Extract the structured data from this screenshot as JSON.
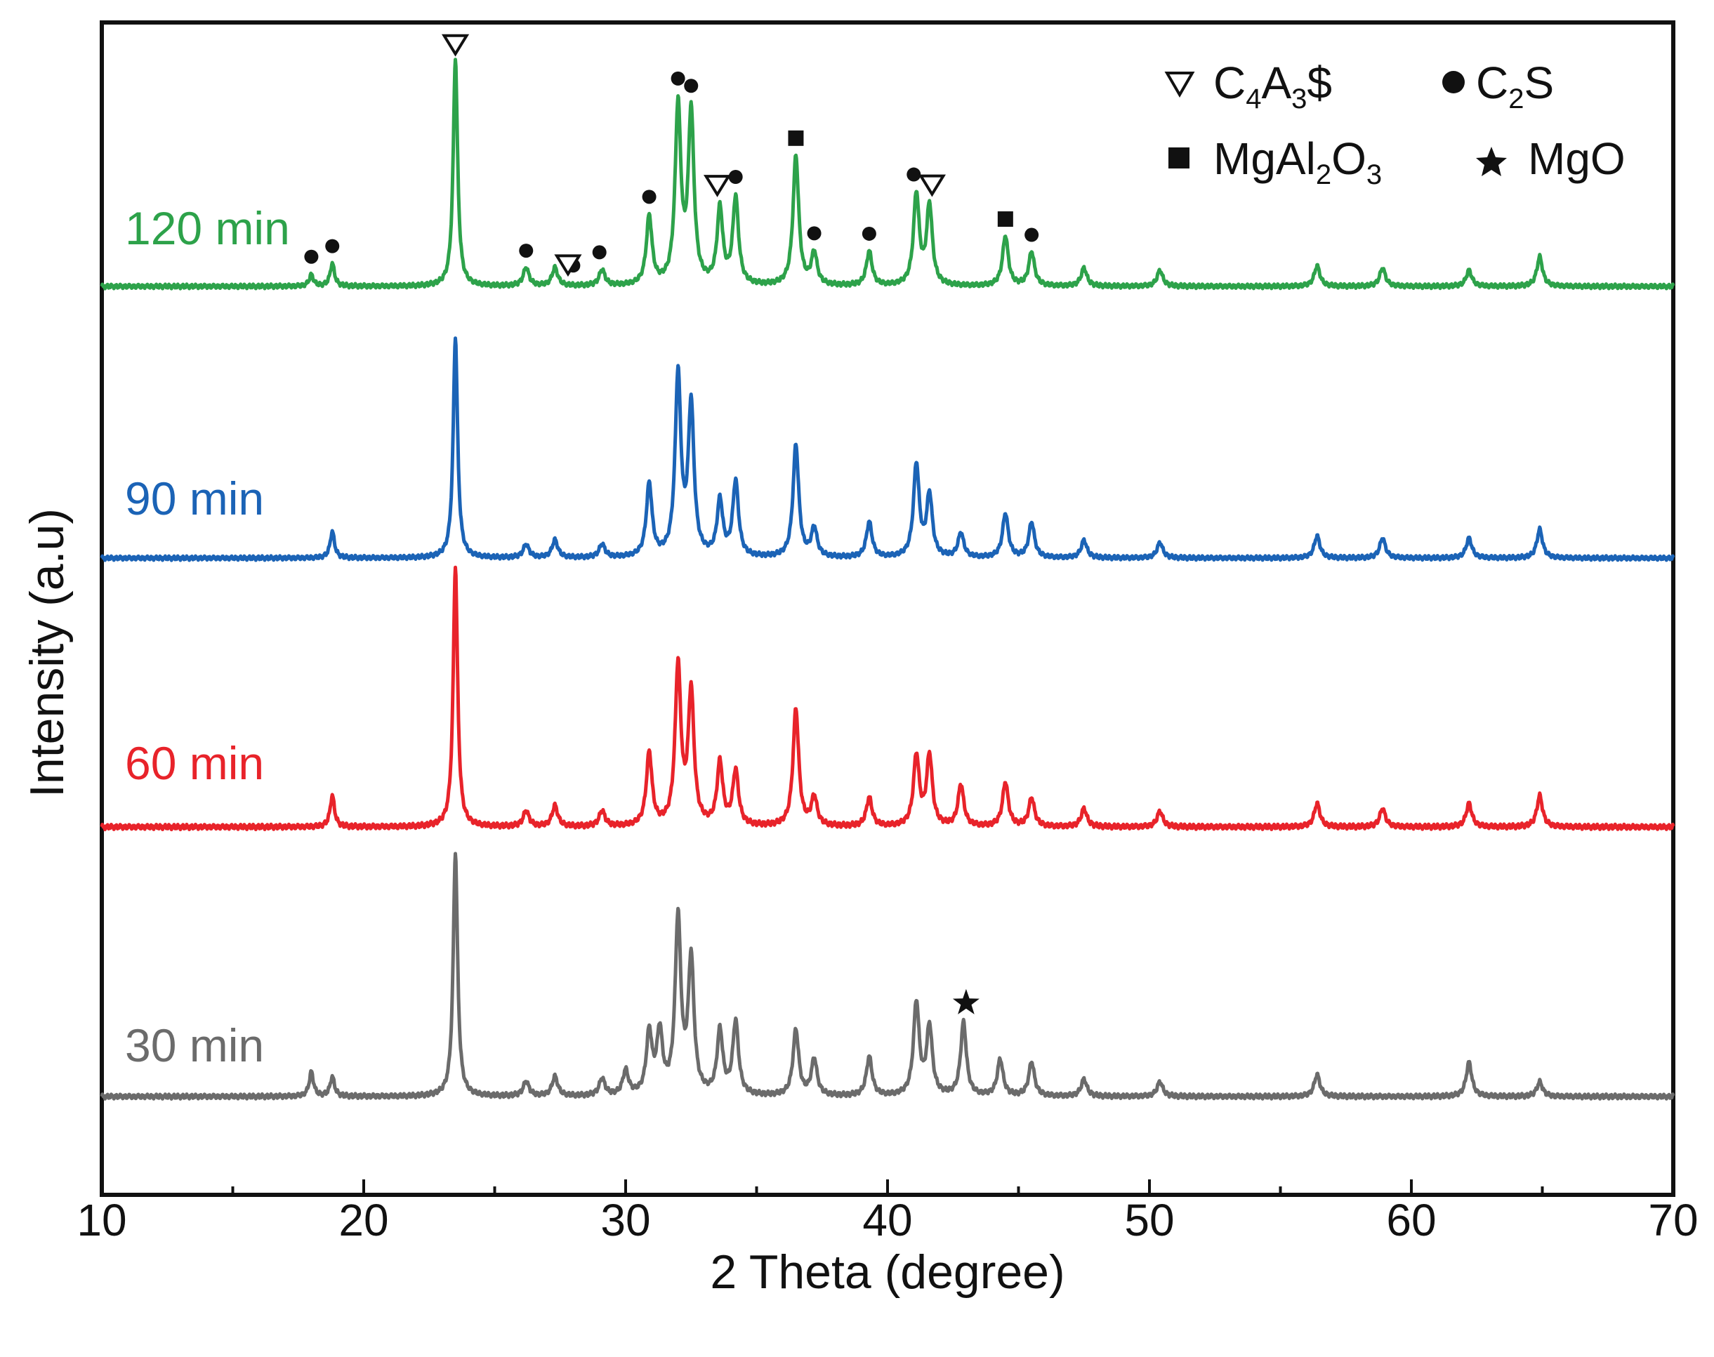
{
  "chart_data": {
    "type": "line",
    "title": "",
    "xlabel": "2 Theta (degree)",
    "ylabel": "Intensity (a.u)",
    "xlim": [
      10,
      70
    ],
    "xticks": [
      10,
      20,
      30,
      40,
      50,
      60,
      70
    ],
    "grid": false,
    "colors": {
      "30 min": "#6b6b6b",
      "60 min": "#e8232a",
      "90 min": "#1b63b6",
      "120 min": "#2da24a",
      "axis": "#111111"
    },
    "series": [
      {
        "name": "30 min",
        "peaks": [
          [
            18.0,
            0.1
          ],
          [
            18.8,
            0.08
          ],
          [
            23.5,
            1.0
          ],
          [
            26.2,
            0.06
          ],
          [
            27.3,
            0.08
          ],
          [
            29.1,
            0.07
          ],
          [
            30.0,
            0.1
          ],
          [
            30.9,
            0.25
          ],
          [
            31.3,
            0.25
          ],
          [
            32.0,
            0.72
          ],
          [
            32.5,
            0.55
          ],
          [
            33.6,
            0.26
          ],
          [
            34.2,
            0.3
          ],
          [
            36.5,
            0.27
          ],
          [
            37.2,
            0.15
          ],
          [
            39.3,
            0.16
          ],
          [
            41.1,
            0.38
          ],
          [
            41.6,
            0.28
          ],
          [
            42.9,
            0.3
          ],
          [
            44.3,
            0.15
          ],
          [
            45.5,
            0.14
          ],
          [
            47.5,
            0.07
          ],
          [
            50.4,
            0.06
          ],
          [
            56.4,
            0.09
          ],
          [
            62.2,
            0.14
          ],
          [
            64.9,
            0.06
          ]
        ]
      },
      {
        "name": "60 min",
        "peaks": [
          [
            18.8,
            0.12
          ],
          [
            23.5,
            1.0
          ],
          [
            26.2,
            0.06
          ],
          [
            27.3,
            0.08
          ],
          [
            29.1,
            0.06
          ],
          [
            30.9,
            0.28
          ],
          [
            32.0,
            0.61
          ],
          [
            32.5,
            0.51
          ],
          [
            33.6,
            0.24
          ],
          [
            34.2,
            0.21
          ],
          [
            36.5,
            0.45
          ],
          [
            37.2,
            0.11
          ],
          [
            39.3,
            0.11
          ],
          [
            41.1,
            0.27
          ],
          [
            41.6,
            0.27
          ],
          [
            42.8,
            0.16
          ],
          [
            44.5,
            0.17
          ],
          [
            45.5,
            0.11
          ],
          [
            47.5,
            0.07
          ],
          [
            50.4,
            0.06
          ],
          [
            56.4,
            0.09
          ],
          [
            58.9,
            0.07
          ],
          [
            62.2,
            0.09
          ],
          [
            64.9,
            0.12
          ]
        ]
      },
      {
        "name": "90 min",
        "peaks": [
          [
            18.8,
            0.12
          ],
          [
            23.5,
            1.0
          ],
          [
            26.2,
            0.06
          ],
          [
            27.3,
            0.08
          ],
          [
            29.1,
            0.06
          ],
          [
            30.9,
            0.33
          ],
          [
            32.0,
            0.82
          ],
          [
            32.5,
            0.68
          ],
          [
            33.6,
            0.25
          ],
          [
            34.2,
            0.34
          ],
          [
            36.5,
            0.51
          ],
          [
            37.2,
            0.13
          ],
          [
            39.3,
            0.16
          ],
          [
            41.1,
            0.42
          ],
          [
            41.6,
            0.28
          ],
          [
            42.8,
            0.11
          ],
          [
            44.5,
            0.2
          ],
          [
            45.5,
            0.16
          ],
          [
            47.5,
            0.08
          ],
          [
            50.4,
            0.07
          ],
          [
            56.4,
            0.1
          ],
          [
            58.9,
            0.09
          ],
          [
            62.2,
            0.09
          ],
          [
            64.9,
            0.13
          ]
        ]
      },
      {
        "name": "120 min",
        "peaks": [
          [
            18.0,
            0.05
          ],
          [
            18.8,
            0.1
          ],
          [
            23.5,
            1.0
          ],
          [
            26.2,
            0.08
          ],
          [
            27.3,
            0.08
          ],
          [
            29.1,
            0.07
          ],
          [
            30.9,
            0.3
          ],
          [
            32.0,
            0.78
          ],
          [
            32.5,
            0.75
          ],
          [
            33.6,
            0.33
          ],
          [
            34.2,
            0.38
          ],
          [
            36.5,
            0.57
          ],
          [
            37.2,
            0.14
          ],
          [
            39.3,
            0.15
          ],
          [
            41.1,
            0.4
          ],
          [
            41.6,
            0.35
          ],
          [
            44.5,
            0.22
          ],
          [
            45.5,
            0.15
          ],
          [
            47.5,
            0.08
          ],
          [
            50.4,
            0.07
          ],
          [
            56.4,
            0.09
          ],
          [
            58.9,
            0.08
          ],
          [
            62.2,
            0.07
          ],
          [
            64.9,
            0.13
          ]
        ]
      }
    ],
    "legend": [
      {
        "marker": "triangle-down-open",
        "label": "C",
        "sub1": "4",
        "mid": "A",
        "sub2": "3",
        "tail": "$"
      },
      {
        "marker": "circle",
        "label": "C",
        "sub1": "2",
        "mid": "S",
        "sub2": "",
        "tail": ""
      },
      {
        "marker": "square",
        "label": "MgAl",
        "sub1": "2",
        "mid": "O",
        "sub2": "3",
        "tail": ""
      },
      {
        "marker": "star",
        "label": "MgO",
        "sub1": "",
        "mid": "",
        "sub2": "",
        "tail": ""
      }
    ],
    "annotations": [
      {
        "series": "120 min",
        "marker": "circle",
        "x": [
          18.0,
          18.8,
          26.2,
          28.0,
          29.0,
          30.9,
          32.0,
          32.5,
          34.2,
          37.2,
          39.3,
          41.0,
          45.5
        ]
      },
      {
        "series": "120 min",
        "marker": "triangle-down-open",
        "x": [
          23.5,
          27.8,
          33.5,
          41.7
        ]
      },
      {
        "series": "120 min",
        "marker": "square",
        "x": [
          36.5,
          44.5
        ]
      },
      {
        "series": "30 min",
        "marker": "star",
        "x": [
          43.0
        ]
      }
    ]
  }
}
